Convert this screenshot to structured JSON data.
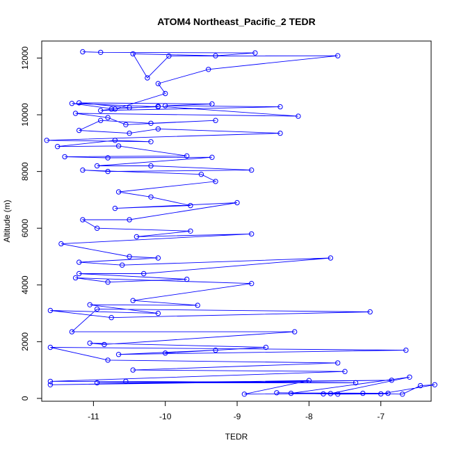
{
  "chart_data": {
    "type": "line",
    "title": "ATOM4 Northeast_Pacific_2 TEDR",
    "xlabel": "TEDR",
    "ylabel": "Altitude (m)",
    "xlim": [
      -11.72,
      -6.3
    ],
    "ylim": [
      -100,
      12600
    ],
    "x_ticks": [
      -11,
      -10,
      -9,
      -8,
      -7
    ],
    "y_ticks": [
      0,
      2000,
      4000,
      6000,
      8000,
      10000,
      12000
    ],
    "grid": false,
    "legend": "none",
    "marker": "open-circle",
    "series": [
      {
        "color": "#0000ff",
        "points": [
          [
            -11.15,
            12220
          ],
          [
            -10.9,
            12200
          ],
          [
            -8.75,
            12180
          ],
          [
            -9.3,
            12080
          ],
          [
            -10.45,
            12150
          ],
          [
            -10.25,
            11300
          ],
          [
            -9.95,
            12070
          ],
          [
            -7.6,
            12080
          ],
          [
            -9.4,
            11600
          ],
          [
            -10.1,
            11100
          ],
          [
            -10.0,
            10750
          ],
          [
            -10.7,
            10200
          ],
          [
            -11.3,
            10400
          ],
          [
            -10.1,
            10280
          ],
          [
            -10.5,
            10250
          ],
          [
            -11.2,
            10420
          ],
          [
            -9.35,
            10380
          ],
          [
            -10.0,
            10320
          ],
          [
            -8.4,
            10280
          ],
          [
            -10.9,
            10150
          ],
          [
            -10.75,
            10200
          ],
          [
            -10.1,
            10300
          ],
          [
            -8.15,
            9950
          ],
          [
            -11.25,
            10050
          ],
          [
            -10.8,
            9900
          ],
          [
            -10.55,
            9650
          ],
          [
            -9.3,
            9800
          ],
          [
            -10.2,
            9700
          ],
          [
            -10.9,
            9800
          ],
          [
            -11.2,
            9450
          ],
          [
            -10.5,
            9350
          ],
          [
            -10.1,
            9500
          ],
          [
            -8.4,
            9350
          ],
          [
            -11.65,
            9100
          ],
          [
            -10.2,
            9050
          ],
          [
            -10.7,
            9100
          ],
          [
            -11.5,
            8880
          ],
          [
            -10.65,
            8900
          ],
          [
            -9.7,
            8550
          ],
          [
            -11.4,
            8520
          ],
          [
            -10.8,
            8480
          ],
          [
            -9.35,
            8500
          ],
          [
            -10.95,
            8200
          ],
          [
            -10.2,
            8200
          ],
          [
            -8.8,
            8050
          ],
          [
            -10.8,
            8000
          ],
          [
            -11.15,
            8050
          ],
          [
            -9.5,
            7900
          ],
          [
            -9.3,
            7650
          ],
          [
            -10.65,
            7280
          ],
          [
            -10.2,
            7100
          ],
          [
            -9.65,
            6800
          ],
          [
            -10.7,
            6700
          ],
          [
            -9.0,
            6900
          ],
          [
            -10.5,
            6300
          ],
          [
            -11.15,
            6300
          ],
          [
            -10.95,
            6000
          ],
          [
            -9.65,
            5900
          ],
          [
            -10.4,
            5700
          ],
          [
            -8.8,
            5800
          ],
          [
            -11.45,
            5450
          ],
          [
            -10.5,
            5000
          ],
          [
            -10.1,
            4950
          ],
          [
            -11.2,
            4800
          ],
          [
            -10.6,
            4700
          ],
          [
            -7.7,
            4950
          ],
          [
            -10.3,
            4400
          ],
          [
            -11.2,
            4400
          ],
          [
            -9.7,
            4200
          ],
          [
            -10.8,
            4100
          ],
          [
            -11.25,
            4250
          ],
          [
            -8.8,
            4050
          ],
          [
            -10.45,
            3450
          ],
          [
            -9.55,
            3280
          ],
          [
            -11.05,
            3300
          ],
          [
            -10.1,
            3000
          ],
          [
            -11.6,
            3100
          ],
          [
            -10.75,
            2850
          ],
          [
            -7.15,
            3050
          ],
          [
            -10.95,
            3150
          ],
          [
            -11.3,
            2350
          ],
          [
            -8.2,
            2350
          ],
          [
            -10.85,
            1900
          ],
          [
            -11.05,
            1950
          ],
          [
            -8.6,
            1800
          ],
          [
            -10.0,
            1600
          ],
          [
            -9.3,
            1700
          ],
          [
            -10.65,
            1550
          ],
          [
            -6.65,
            1700
          ],
          [
            -11.6,
            1800
          ],
          [
            -10.8,
            1350
          ],
          [
            -7.6,
            1250
          ],
          [
            -10.45,
            1000
          ],
          [
            -7.5,
            950
          ],
          [
            -11.6,
            600
          ],
          [
            -10.55,
            600
          ],
          [
            -7.35,
            550
          ],
          [
            -10.95,
            550
          ],
          [
            -6.85,
            640
          ],
          [
            -11.6,
            480
          ],
          [
            -8.0,
            630
          ],
          [
            -8.9,
            150
          ],
          [
            -7.25,
            180
          ],
          [
            -6.7,
            150
          ],
          [
            -6.45,
            450
          ],
          [
            -6.25,
            480
          ],
          [
            -7.0,
            160
          ],
          [
            -7.6,
            150
          ],
          [
            -8.25,
            180
          ],
          [
            -6.6,
            750
          ],
          [
            -7.7,
            170
          ],
          [
            -8.45,
            200
          ],
          [
            -6.9,
            180
          ],
          [
            -7.8,
            160
          ]
        ]
      }
    ]
  }
}
